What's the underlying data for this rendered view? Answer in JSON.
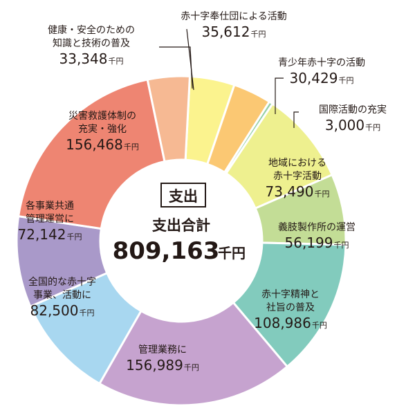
{
  "chart_data": {
    "type": "pie",
    "donut": true,
    "center": {
      "tag": "支出",
      "subtitle": "支出合計",
      "total": "809,163",
      "total_unit": "千円"
    },
    "unit": "千円",
    "slices": [
      {
        "label_lines": [
          "赤十字奉仕団による活動"
        ],
        "value": 35612,
        "value_text": "35,612",
        "color": "#fbf38e"
      },
      {
        "label_lines": [
          "青少年赤十字の活動"
        ],
        "value": 30429,
        "value_text": "30,429",
        "color": "#fbc873"
      },
      {
        "label_lines": [
          "国際活動の充実"
        ],
        "value": 3000,
        "value_text": "3,000",
        "color": "#93cfa6"
      },
      {
        "label_lines": [
          "地域における",
          "赤十字活動"
        ],
        "value": 73490,
        "value_text": "73,490",
        "color": "#eef08f"
      },
      {
        "label_lines": [
          "義肢製作所の運営"
        ],
        "value": 56199,
        "value_text": "56,199",
        "color": "#c3dd96"
      },
      {
        "label_lines": [
          "赤十字精神と",
          "社旨の普及"
        ],
        "value": 108986,
        "value_text": "108,986",
        "color": "#82cbbd"
      },
      {
        "label_lines": [
          "管理業務に"
        ],
        "value": 156989,
        "value_text": "156,989",
        "color": "#c6a3cf"
      },
      {
        "label_lines": [
          "全国的な赤十字",
          "事業、活動に"
        ],
        "value": 82500,
        "value_text": "82,500",
        "color": "#a8d7f0"
      },
      {
        "label_lines": [
          "各事業共通",
          "管理運営に"
        ],
        "value": 72142,
        "value_text": "72,142",
        "color": "#a999c9"
      },
      {
        "label_lines": [
          "災害救護体制の",
          "充実・強化"
        ],
        "value": 156468,
        "value_text": "156,468",
        "color": "#ee8572"
      },
      {
        "label_lines": [
          "健康・安全のための",
          "知識と技術の普及"
        ],
        "value": 33348,
        "value_text": "33,348",
        "color": "#f6b993"
      }
    ]
  }
}
